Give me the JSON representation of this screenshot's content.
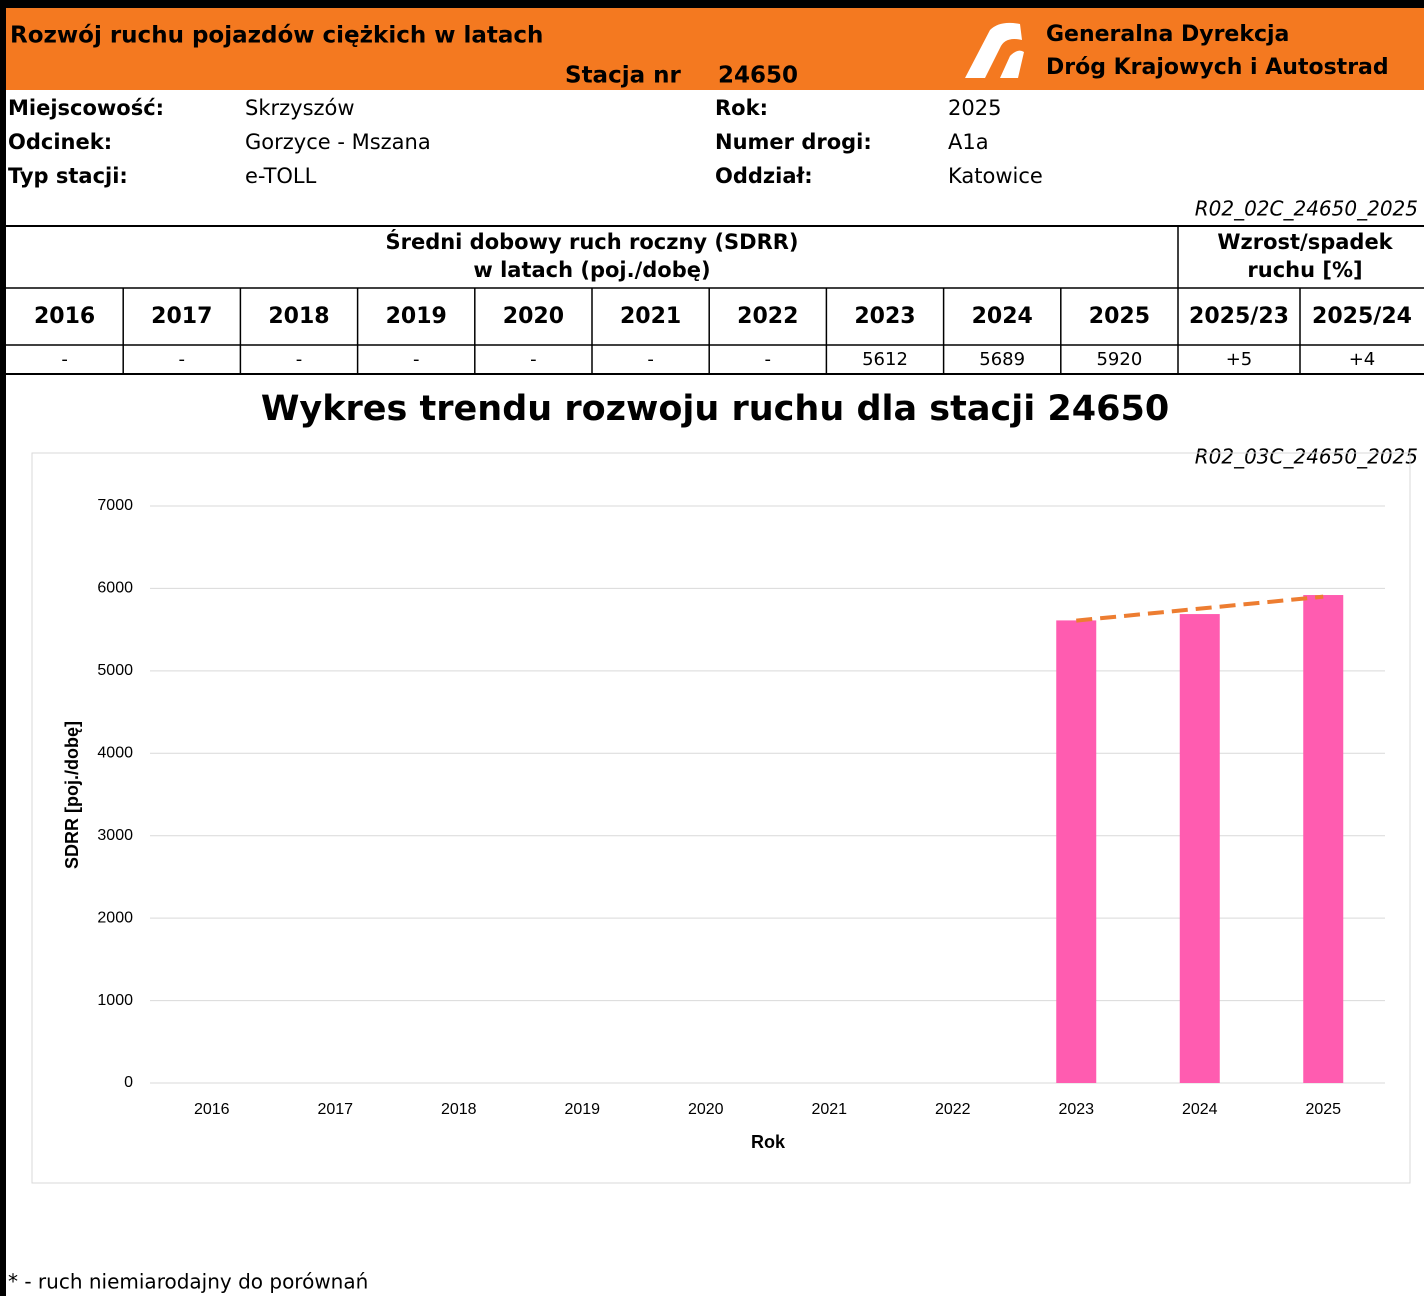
{
  "header": {
    "title": "Rozwój ruchu pojazdów ciężkich w latach",
    "station_label": "Stacja nr",
    "station": "24650",
    "org": [
      "Generalna Dyrekcja",
      "Dróg Krajowych i Autostrad"
    ]
  },
  "info": {
    "rows": [
      [
        "Miejscowość:",
        "Skrzyszów",
        "Rok:",
        "2025"
      ],
      [
        "Odcinek:",
        "Gorzyce - Mszana",
        "Numer drogi:",
        "A1a"
      ],
      [
        "Typ stacji:",
        "e-TOLL",
        "Oddział:",
        "Katowice"
      ]
    ]
  },
  "table_code": "R02_02C_24650_2025",
  "table": {
    "header": [
      "Średni dobowy ruch roczny (SDRR)",
      "w latach (poj./dobę)"
    ],
    "change_header": [
      "Wzrost/spadek",
      "ruchu [%]"
    ],
    "columns": [
      "2016",
      "2017",
      "2018",
      "2019",
      "2020",
      "2021",
      "2022",
      "2023",
      "2024",
      "2025",
      "2025/23",
      "2025/24"
    ],
    "values": [
      "-",
      "-",
      "-",
      "-",
      "-",
      "-",
      "-",
      "5612",
      "5689",
      "5920",
      "+5",
      "+4"
    ]
  },
  "chart_code": "R02_03C_24650_2025",
  "chart_data": {
    "type": "bar",
    "title": "Wykres trendu rozwoju ruchu dla stacji 24650",
    "x_label": "Rok",
    "y_label": "SDRR [poj./dobę]",
    "categories": [
      "2016",
      "2017",
      "2018",
      "2019",
      "2020",
      "2021",
      "2022",
      "2023",
      "2024",
      "2025"
    ],
    "values": [
      null,
      null,
      null,
      null,
      null,
      null,
      null,
      5612,
      5689,
      5920
    ],
    "color": "#ff5cb0",
    "trend": {
      "color": "#ed7d31",
      "values": [
        null,
        null,
        null,
        null,
        null,
        null,
        null,
        5610,
        5755,
        5900
      ]
    },
    "ylim": [
      0,
      7000
    ],
    "yticks": [
      0,
      1000,
      2000,
      3000,
      4000,
      5000,
      6000,
      7000
    ],
    "grid": true
  },
  "footnote": "* - ruch niemiarodajny do porównań"
}
